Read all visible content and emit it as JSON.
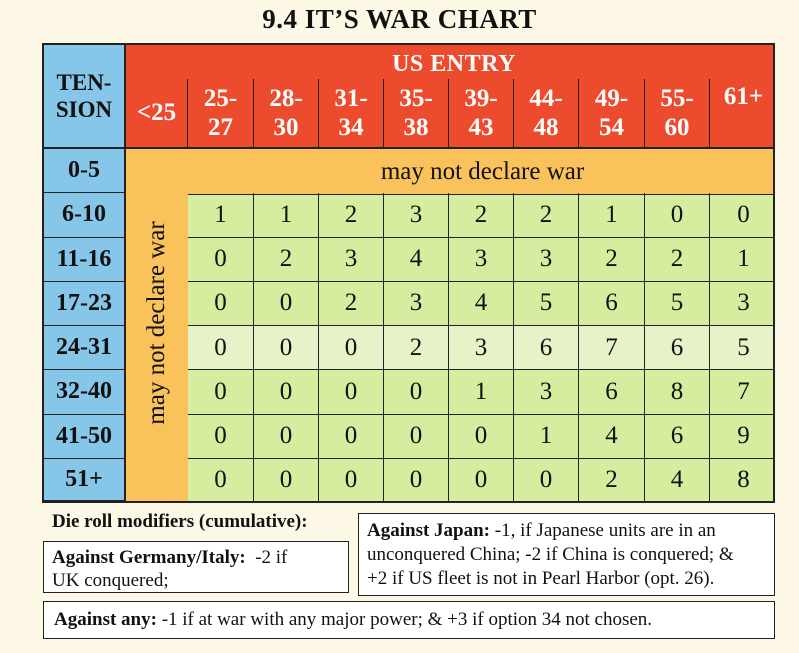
{
  "title": "9.4   IT’S WAR CHART",
  "header": {
    "tension_line1": "TEN-",
    "tension_line2": "SION",
    "us_entry": "US ENTRY",
    "first_col": "<25",
    "columns": [
      {
        "top": "25-",
        "bottom": "27"
      },
      {
        "top": "28-",
        "bottom": "30"
      },
      {
        "top": "31-",
        "bottom": "34"
      },
      {
        "top": "35-",
        "bottom": "38"
      },
      {
        "top": "39-",
        "bottom": "43"
      },
      {
        "top": "44-",
        "bottom": "48"
      },
      {
        "top": "49-",
        "bottom": "54"
      },
      {
        "top": "55-",
        "bottom": "60"
      },
      {
        "top": "61+",
        "bottom": ""
      }
    ]
  },
  "row_labels": [
    "0-5",
    "6-10",
    "11-16",
    "17-23",
    "24-31",
    "32-40",
    "41-50",
    "51+"
  ],
  "no_war_banner": "may not declare war",
  "no_war_vertical": "may not declare war",
  "rows": [
    [
      "1",
      "1",
      "2",
      "3",
      "2",
      "2",
      "1",
      "0",
      "0"
    ],
    [
      "0",
      "2",
      "3",
      "4",
      "3",
      "3",
      "2",
      "2",
      "1"
    ],
    [
      "0",
      "0",
      "2",
      "3",
      "4",
      "5",
      "6",
      "5",
      "3"
    ],
    [
      "0",
      "0",
      "0",
      "2",
      "3",
      "6",
      "7",
      "6",
      "5"
    ],
    [
      "0",
      "0",
      "0",
      "0",
      "1",
      "3",
      "6",
      "8",
      "7"
    ],
    [
      "0",
      "0",
      "0",
      "0",
      "0",
      "1",
      "4",
      "6",
      "9"
    ],
    [
      "0",
      "0",
      "0",
      "0",
      "0",
      "0",
      "2",
      "4",
      "8"
    ]
  ],
  "highlight_row": 3,
  "modifiers": {
    "heading": "Die roll modifiers (cumulative):",
    "germany_label": "Against Germany/Italy:",
    "germany_text_1": "-2 if",
    "germany_text_2": "UK conquered;",
    "japan_label": "Against Japan:",
    "japan_text_1": "-1, if Japanese units are in an",
    "japan_text_2": "unconquered China; -2 if China is conquered; &",
    "japan_text_3": "+2 if US fleet is not in Pearl Harbor (opt. 26).",
    "any_label": "Against any:",
    "any_text": "-1 if at war with any major power; & +3 if option 34 not chosen."
  },
  "colors": {
    "tension": "#86c6e8",
    "entry": "#ec4b2e",
    "no_war": "#f9c25b",
    "values": "#d6ec9e",
    "values_light": "#e6f2c8"
  }
}
